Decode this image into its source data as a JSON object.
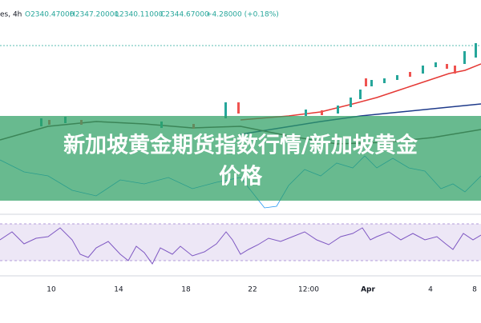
{
  "header": {
    "symbol": "es, 4h",
    "open": "O2340.47000",
    "high": "H2347.20000",
    "low": "L2340.11000",
    "close": "C2344.67000",
    "change": "+4.28000 (+0.18%)"
  },
  "x_axis": {
    "labels": [
      "10",
      "14",
      "18",
      "22",
      "12:00",
      "Apr",
      "4",
      "8"
    ]
  },
  "banner": {
    "title_line1": "新加坡黄金期货指数行情/新加坡黄金",
    "title_line2": "价格"
  }
}
